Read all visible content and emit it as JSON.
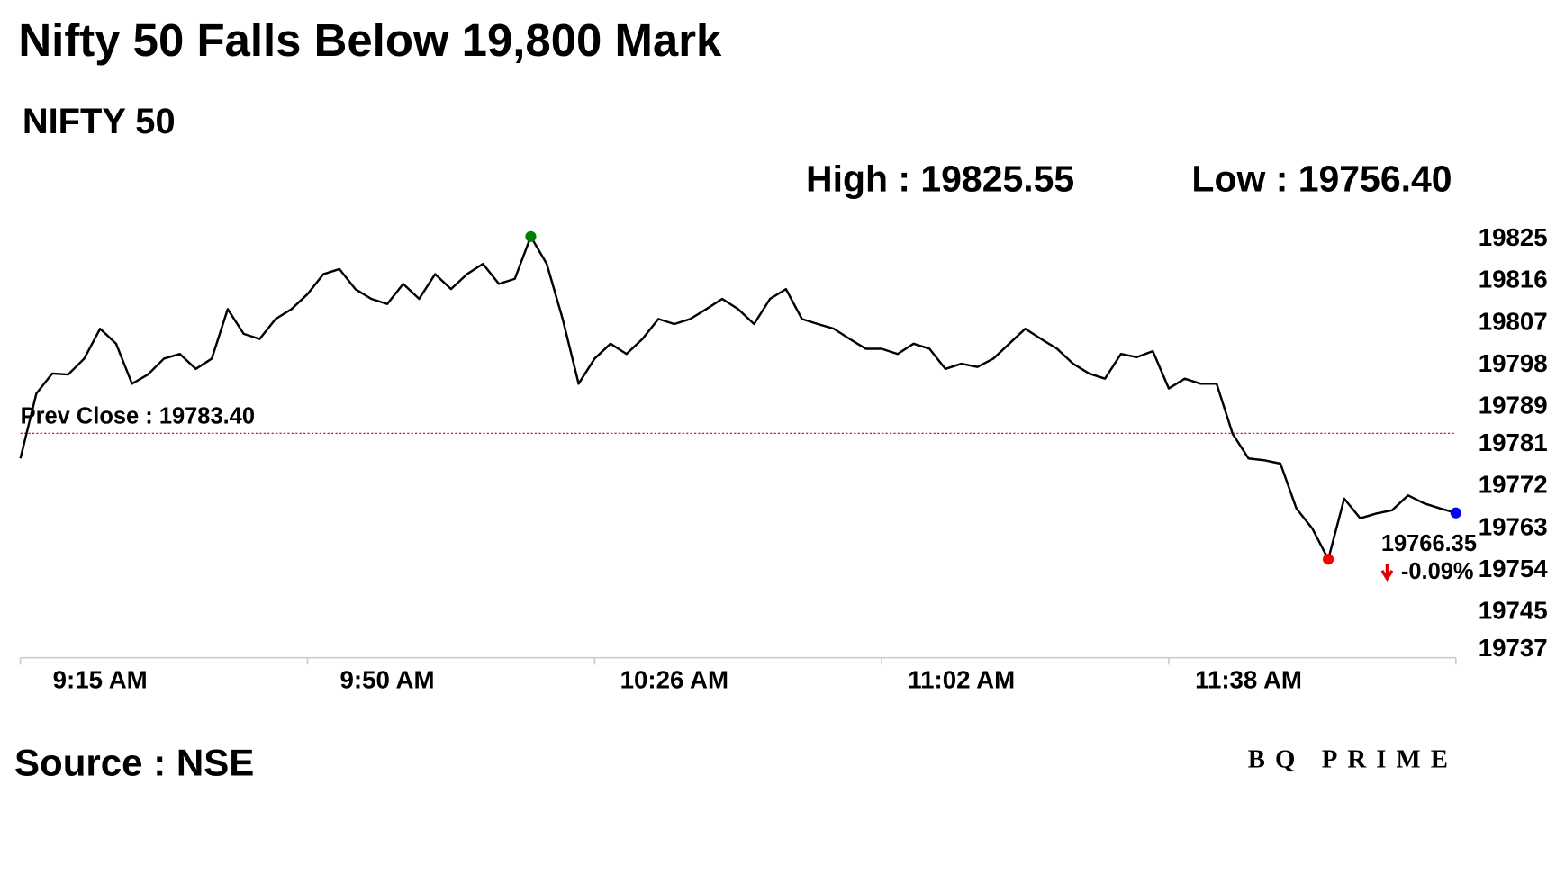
{
  "chart_data": {
    "type": "line",
    "title": "Nifty 50 Falls Below 19,800 Mark",
    "subtitle": "NIFTY 50",
    "high_text": "High : 19825.55",
    "low_text": "Low : 19756.40",
    "prev_close": {
      "label": "Prev Close : 19783.40",
      "value": 19783.4
    },
    "last": {
      "label": "19766.35",
      "change": "-0.09%"
    },
    "source": "Source : NSE",
    "brand": "BQ PRIME",
    "color": "#000000",
    "prev_close_color": "#c00000",
    "high_color": "#008000",
    "low_color": "#ff0000",
    "last_color": "#0000ff",
    "change_color": "#e00000",
    "categories": [
      "9:15 AM",
      null,
      null,
      null,
      null,
      null,
      null,
      null,
      null,
      null,
      null,
      null,
      null,
      null,
      null,
      null,
      null,
      null,
      "9:50 AM",
      null,
      null,
      null,
      null,
      null,
      null,
      null,
      null,
      null,
      null,
      null,
      null,
      null,
      null,
      null,
      null,
      null,
      "10:26 AM",
      null,
      null,
      null,
      null,
      null,
      null,
      null,
      null,
      null,
      null,
      null,
      null,
      null,
      null,
      null,
      null,
      null,
      "11:02 AM",
      null,
      null,
      null,
      null,
      null,
      null,
      null,
      null,
      null,
      null,
      null,
      null,
      null,
      null,
      null,
      null,
      null,
      "11:38 AM",
      null,
      null,
      null,
      null,
      null,
      null,
      null,
      null,
      null,
      null,
      null,
      null,
      null,
      null,
      null,
      null,
      null,
      null
    ],
    "values": [
      19778,
      19791.9,
      19796.2,
      19796,
      19799.4,
      19805.8,
      19802.6,
      19794,
      19796,
      19799.4,
      19800.4,
      19797.2,
      19799.4,
      19810,
      19804.7,
      19803.6,
      19807.9,
      19810,
      19813.2,
      19817.5,
      19818.6,
      19814.3,
      19812.2,
      19811.1,
      19815.4,
      19812.2,
      19817.5,
      19814.3,
      19817.5,
      19819.7,
      19815.4,
      19816.5,
      19825.55,
      19819.7,
      19807.9,
      19794,
      19799.4,
      19802.6,
      19800.4,
      19803.6,
      19807.9,
      19806.8,
      19807.9,
      19810,
      19812.2,
      19810,
      19806.8,
      19812.2,
      19814.3,
      19807.9,
      19806.8,
      19805.8,
      19803.6,
      19801.5,
      19801.5,
      19800.4,
      19802.6,
      19801.5,
      19797.2,
      19798.3,
      19797.6,
      19799.4,
      19802.6,
      19805.8,
      19803.6,
      19801.5,
      19798.3,
      19796.2,
      19795.1,
      19800.4,
      19799.7,
      19801,
      19793,
      19795.1,
      19794,
      19794,
      19783.3,
      19778,
      19777.6,
      19776.9,
      19767.3,
      19763,
      19756.4,
      19769.4,
      19765.2,
      19766.2,
      19766.9,
      19770.1,
      19768.4,
      19767.3,
      19766.35
    ],
    "ylim": [
      19737,
      19825
    ],
    "yticks": [
      19825,
      19816,
      19807,
      19798,
      19789,
      19781,
      19772,
      19763,
      19754,
      19745,
      19737
    ]
  }
}
